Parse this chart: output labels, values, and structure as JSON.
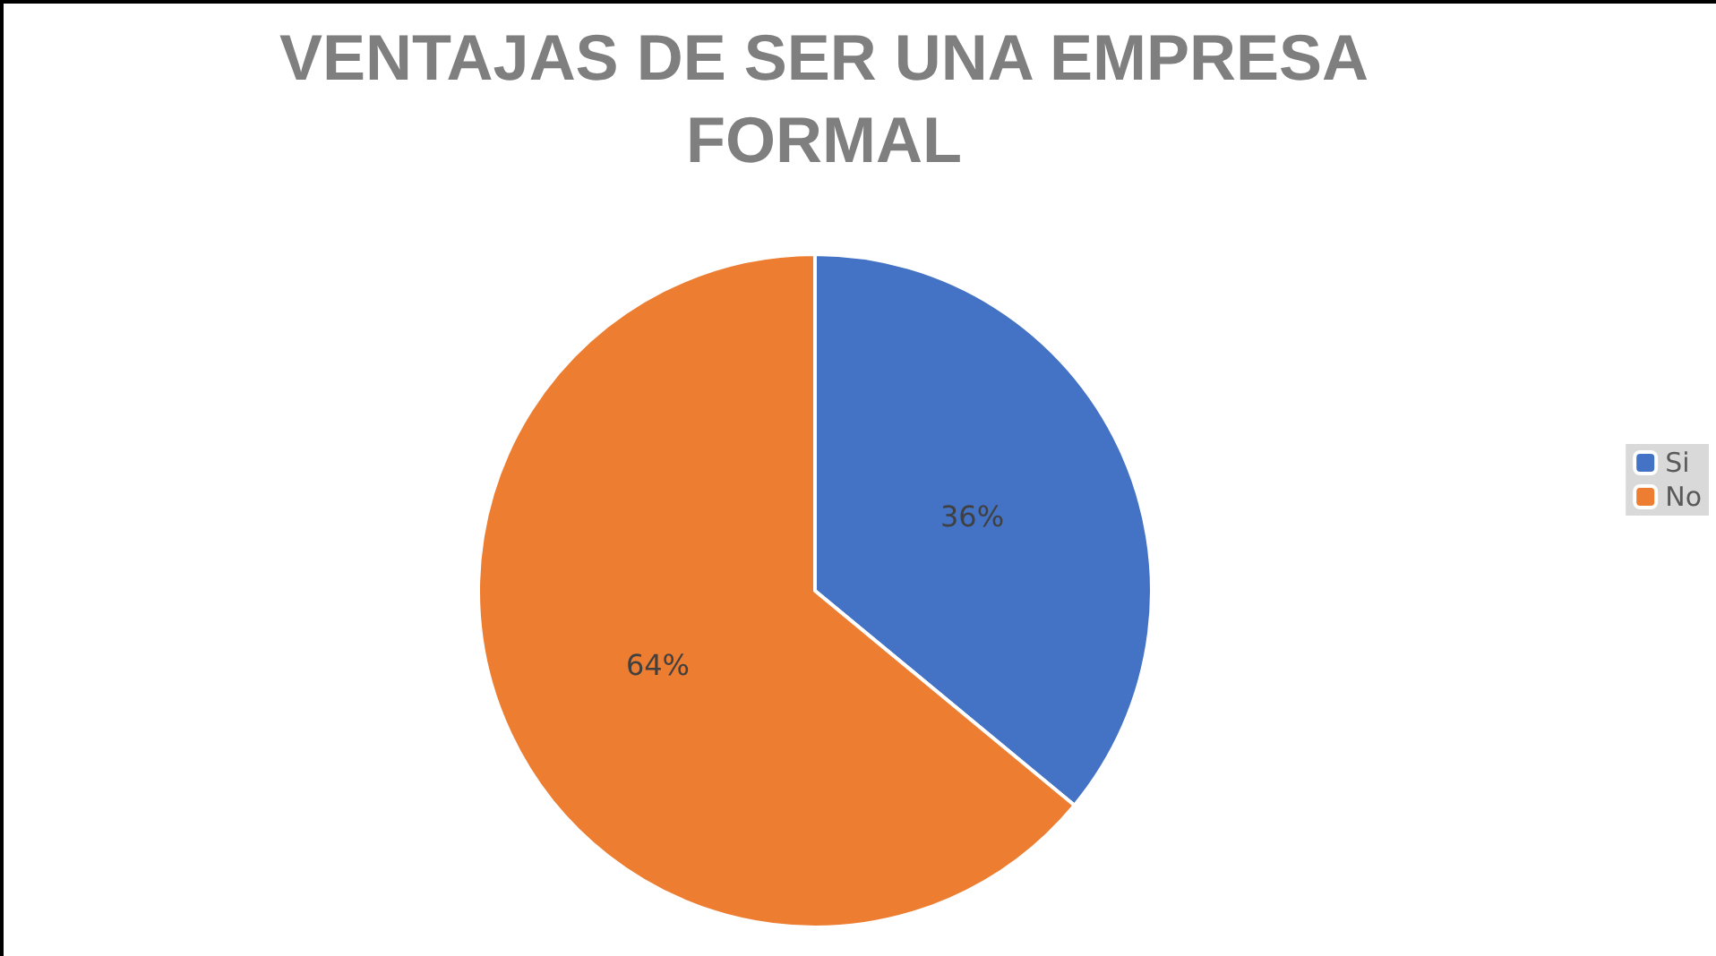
{
  "chart_data": {
    "type": "pie",
    "title": "VENTAJAS DE SER UNA EMPRESA\nFORMAL",
    "categories": [
      "Si",
      "No"
    ],
    "values": [
      36,
      64
    ],
    "colors": [
      "#4472c4",
      "#ed7d31"
    ],
    "value_labels": [
      "36%",
      "64%"
    ],
    "legend": "right"
  }
}
